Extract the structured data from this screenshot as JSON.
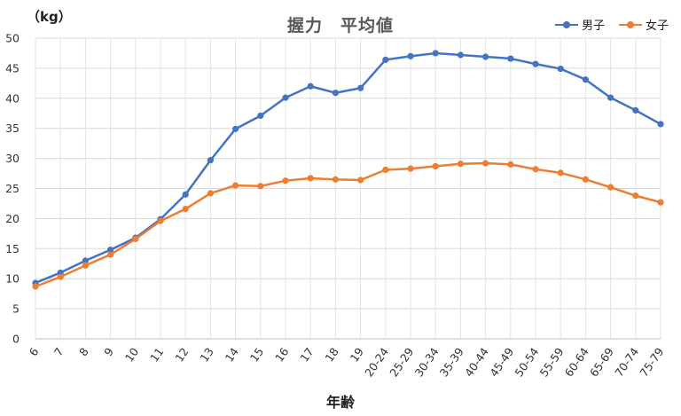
{
  "chart_data": {
    "type": "line",
    "title": "握力　平均値",
    "unit_label": "（kg）",
    "xlabel": "年齢",
    "ylabel": "",
    "ylim": [
      0,
      50
    ],
    "yticks": [
      0,
      5,
      10,
      15,
      20,
      25,
      30,
      35,
      40,
      45,
      50
    ],
    "grid": true,
    "legend_position": "top-right",
    "categories": [
      "6",
      "7",
      "8",
      "9",
      "10",
      "11",
      "12",
      "13",
      "14",
      "15",
      "16",
      "17",
      "18",
      "19",
      "20-24",
      "25-29",
      "30-34",
      "35-39",
      "40-44",
      "45-49",
      "50-54",
      "55-59",
      "60-64",
      "65-69",
      "70-74",
      "75-79"
    ],
    "series": [
      {
        "name": "男子",
        "color": "#4472C4",
        "values": [
          9.3,
          11.0,
          13.0,
          14.8,
          16.8,
          19.9,
          24.0,
          29.7,
          34.9,
          37.1,
          40.1,
          42.0,
          40.9,
          41.7,
          46.4,
          47.0,
          47.5,
          47.2,
          46.9,
          46.6,
          45.7,
          44.9,
          43.1,
          40.1,
          38.0,
          35.7
        ]
      },
      {
        "name": "女子",
        "color": "#ED7D31",
        "values": [
          8.7,
          10.3,
          12.2,
          14.0,
          16.6,
          19.6,
          21.6,
          24.2,
          25.5,
          25.4,
          26.3,
          26.7,
          26.5,
          26.4,
          28.1,
          28.3,
          28.7,
          29.1,
          29.2,
          29.0,
          28.2,
          27.6,
          26.5,
          25.2,
          23.8,
          22.7
        ]
      }
    ]
  }
}
